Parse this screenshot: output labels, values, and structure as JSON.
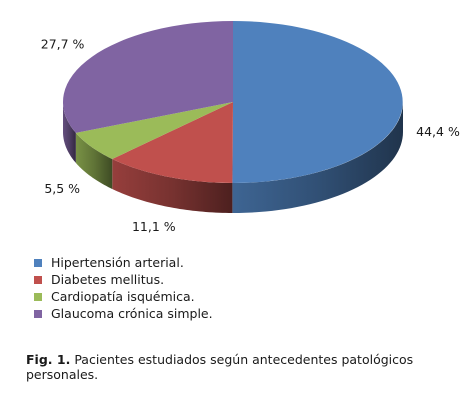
{
  "chart_data": {
    "type": "pie",
    "style": "3d",
    "categories": [
      "Hipertensión  arterial.",
      "Diabetes  mellitus.",
      "Cardiopatía  isquémica.",
      "Glaucoma  crónica  simple."
    ],
    "values": [
      44.4,
      11.1,
      5.5,
      27.7
    ],
    "value_labels": [
      "44,4 %",
      "11,1 %",
      "5,5 %",
      "27,7 %"
    ],
    "colors": [
      "#4f81bd",
      "#c0504d",
      "#9bbb59",
      "#8064a2"
    ],
    "legend_position": "bottom-left"
  },
  "caption": {
    "label": "Fig. 1.",
    "text": "Pacientes estudiados según antecedentes patológicos personales."
  }
}
